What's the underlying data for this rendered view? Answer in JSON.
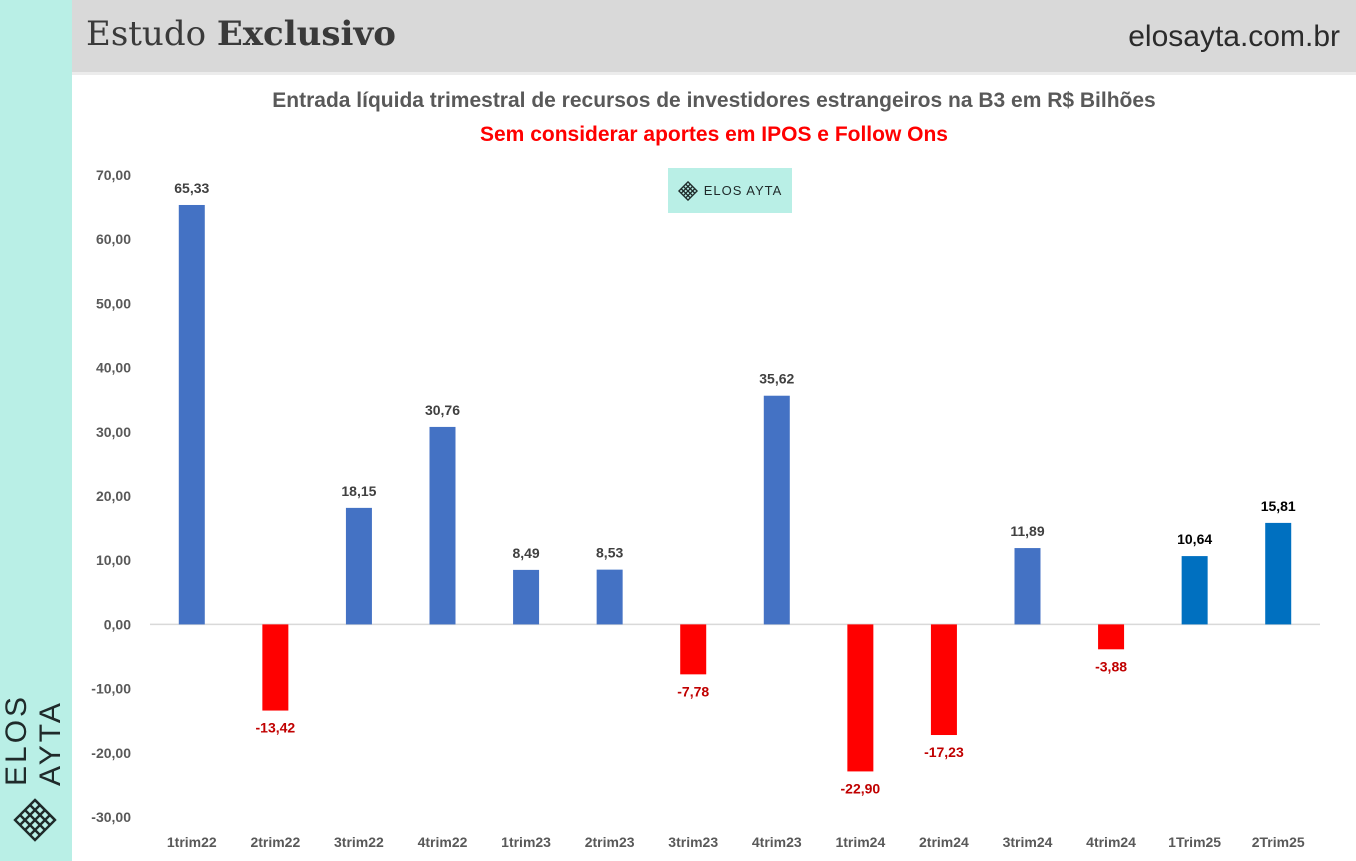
{
  "header": {
    "title_regular": "Estudo",
    "title_bold": "Exclusivo",
    "url": "elosayta.com.br"
  },
  "side": {
    "brand": "ELOS AYTA",
    "logo_icon": "lattice-diamond-icon"
  },
  "watermark": {
    "text": "ELOS AYTA",
    "icon": "lattice-diamond-icon",
    "bg_color": "#b9efe6"
  },
  "colors": {
    "positive": "#4472c4",
    "positive_recent": "#0070c0",
    "negative": "#ff0000",
    "label_positive": "#404040",
    "label_recent": "#000000",
    "label_negative": "#c00000"
  },
  "chart_data": {
    "type": "bar",
    "title": "Entrada líquida trimestral de recursos de investidores estrangeiros na B3 em R$ Bilhões",
    "subtitle": "Sem considerar aportes em IPOS e Follow Ons",
    "categories": [
      "1trim22",
      "2trim22",
      "3trim22",
      "4trim22",
      "1trim23",
      "2trim23",
      "3trim23",
      "4trim23",
      "1trim24",
      "2trim24",
      "3trim24",
      "4trim24",
      "1Trim25",
      "2Trim25"
    ],
    "values": [
      65.33,
      -13.42,
      18.15,
      30.76,
      8.49,
      8.53,
      -7.78,
      35.62,
      -22.9,
      -17.23,
      11.89,
      -3.88,
      10.64,
      15.81
    ],
    "value_labels": [
      "65,33",
      "-13,42",
      "18,15",
      "30,76",
      "8,49",
      "8,53",
      "-7,78",
      "35,62",
      "-22,90",
      "-17,23",
      "11,89",
      "-3,88",
      "10,64",
      "15,81"
    ],
    "yticks": [
      -30,
      -20,
      -10,
      0,
      10,
      20,
      30,
      40,
      50,
      60,
      70
    ],
    "ytick_labels": [
      "-30,00",
      "-20,00",
      "-10,00",
      "0,00",
      "10,00",
      "20,00",
      "30,00",
      "40,00",
      "50,00",
      "60,00",
      "70,00"
    ],
    "ylim": [
      -30,
      70
    ],
    "grid": false,
    "legend": "none"
  }
}
